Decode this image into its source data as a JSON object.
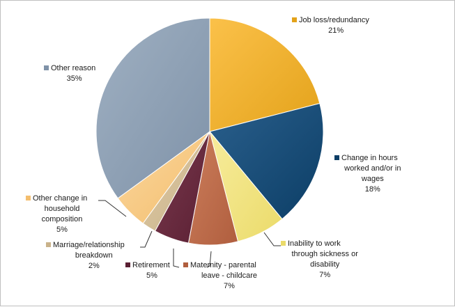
{
  "chart_data": {
    "type": "pie",
    "slices": [
      {
        "name": "Job loss/redundancy",
        "lines": [
          "Job loss/redundancy"
        ],
        "pct_label": "21%",
        "value": 21,
        "color": "#E3A21A",
        "light": "#FBC14A"
      },
      {
        "name": "Change in hours worked and/or in wages",
        "lines": [
          "Change in hours",
          "worked and/or in",
          "wages"
        ],
        "pct_label": "18%",
        "value": 18,
        "color": "#0C3E66",
        "light": "#2A5F8C"
      },
      {
        "name": "Inability to work through sickness or disability",
        "lines": [
          "Inability to work",
          "through sickness or",
          "disability"
        ],
        "pct_label": "7%",
        "value": 7,
        "color": "#EBDB6A",
        "light": "#F7EC9C"
      },
      {
        "name": "Maternity - parental leave - childcare",
        "lines": [
          "Maternity - parental",
          "leave - childcare"
        ],
        "pct_label": "7%",
        "value": 7,
        "color": "#B05E3E",
        "light": "#CC7E5C"
      },
      {
        "name": "Retirement",
        "lines": [
          "Retirement"
        ],
        "pct_label": "5%",
        "value": 5,
        "color": "#5A1F33",
        "light": "#7A3A4E"
      },
      {
        "name": "Marriage/relationship breakdown",
        "lines": [
          "Marriage/relationship",
          "breakdown"
        ],
        "pct_label": "2%",
        "value": 2,
        "color": "#C9B28A",
        "light": "#DECBA6"
      },
      {
        "name": "Other change in household composition",
        "lines": [
          "Other change in",
          "household",
          "composition"
        ],
        "pct_label": "5%",
        "value": 5,
        "color": "#F4BE6E",
        "light": "#FAD79E"
      },
      {
        "name": "Other reason",
        "lines": [
          "Other reason"
        ],
        "pct_label": "35%",
        "value": 35,
        "color": "#7F92A8",
        "light": "#9FB0C2"
      }
    ]
  }
}
